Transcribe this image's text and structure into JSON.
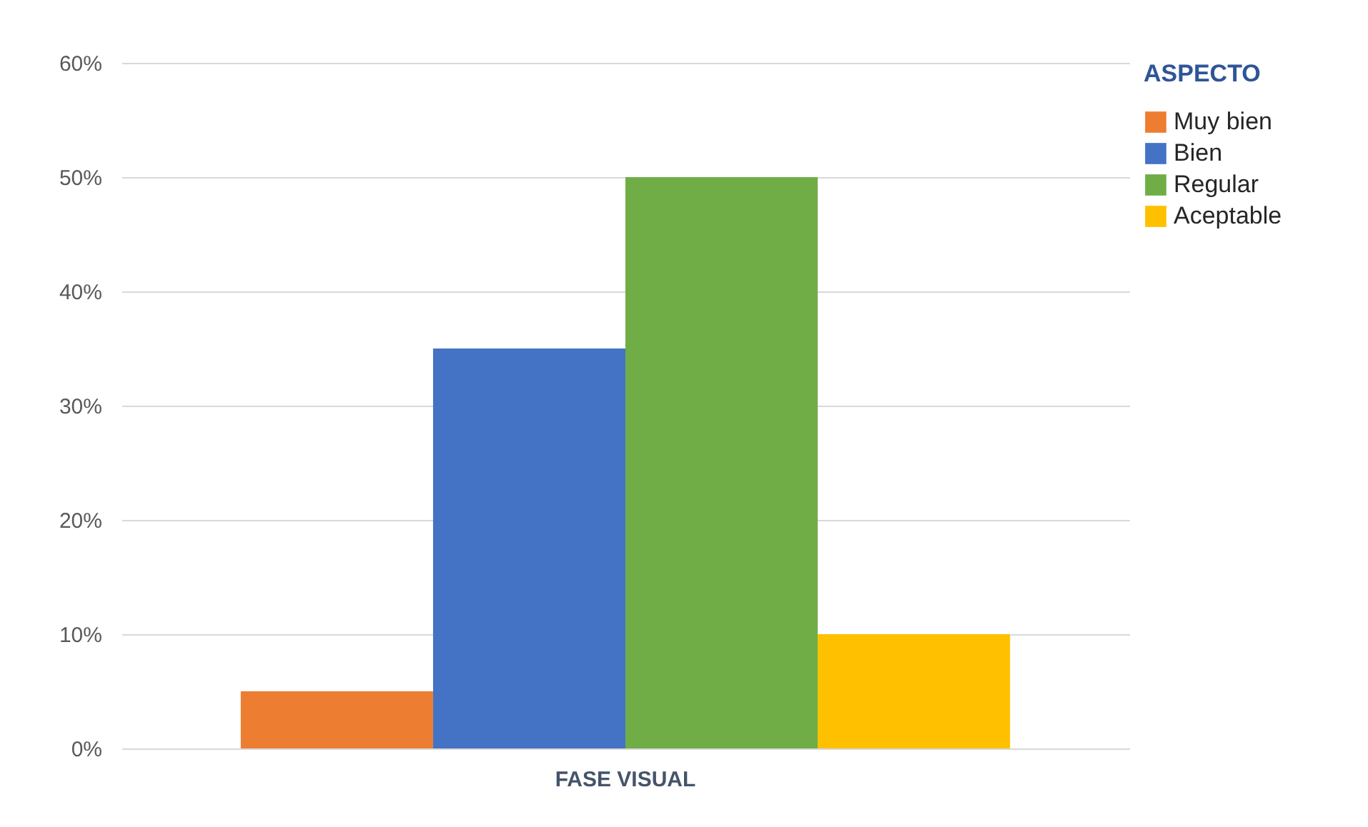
{
  "chart_data": {
    "type": "bar",
    "categories": [
      "FASE VISUAL"
    ],
    "legend_title": "ASPECTO",
    "legend": "right",
    "series": [
      {
        "name": "Muy bien",
        "color": "#ed7d31",
        "values": [
          5
        ]
      },
      {
        "name": "Bien",
        "color": "#4472c4",
        "values": [
          35
        ]
      },
      {
        "name": "Regular",
        "color": "#70ad47",
        "values": [
          50
        ]
      },
      {
        "name": "Aceptable",
        "color": "#ffc000",
        "values": [
          10
        ]
      }
    ],
    "ylim": [
      0,
      60
    ],
    "yticks": [
      {
        "value": 0,
        "label": "0%"
      },
      {
        "value": 10,
        "label": "10%"
      },
      {
        "value": 20,
        "label": "20%"
      },
      {
        "value": 30,
        "label": "30%"
      },
      {
        "value": 40,
        "label": "40%"
      },
      {
        "value": 50,
        "label": "50%"
      },
      {
        "value": 60,
        "label": "60%"
      }
    ],
    "grid": "y"
  }
}
